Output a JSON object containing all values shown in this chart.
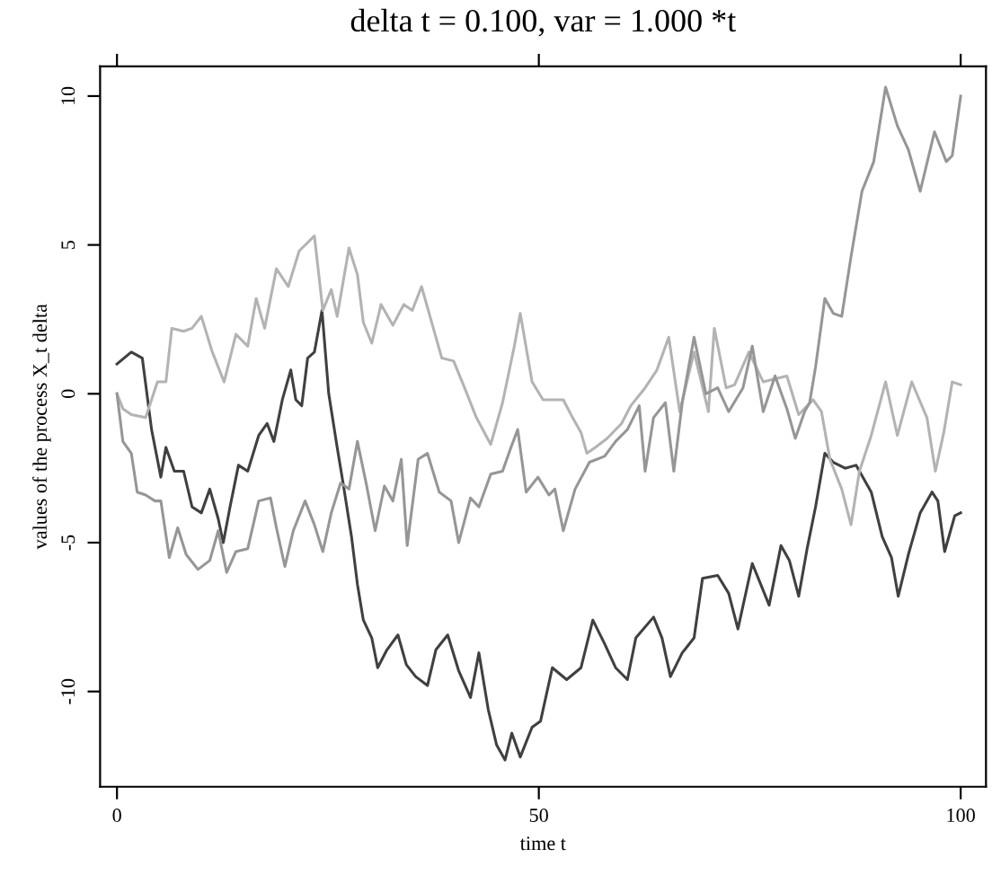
{
  "chart_data": {
    "type": "line",
    "title": "delta t = 0.100, var = 1.000 *t",
    "xlabel": "time t",
    "ylabel": "values of the process X_t delta",
    "xlim": [
      -2,
      103
    ],
    "ylim": [
      -13.2,
      11
    ],
    "xticks": [
      0,
      50,
      100
    ],
    "yticks": [
      -10,
      -5,
      0,
      5,
      10
    ],
    "grid": false,
    "legend": false,
    "marker": "none",
    "line_style": "solid",
    "series": [
      {
        "color": "#404040",
        "x": [
          0,
          1.7,
          3,
          4.1,
          5.2,
          5.8,
          6.8,
          7.9,
          8.9,
          10,
          11,
          12,
          12.6,
          13.4,
          14.4,
          15.5,
          16.8,
          17.8,
          18.6,
          19.6,
          20.6,
          21.2,
          21.9,
          22.6,
          23.4,
          24.3,
          25.1,
          26.1,
          26.8,
          27.8,
          28.5,
          29.2,
          30.2,
          30.9,
          32,
          33.3,
          34.3,
          35.4,
          36.8,
          37.8,
          39.2,
          40.5,
          41.9,
          42.9,
          44,
          45,
          46,
          46.8,
          47.8,
          49.2,
          50.2,
          51.6,
          53.3,
          55,
          56.4,
          57.8,
          59.1,
          60.5,
          61.5,
          63.6,
          64.6,
          65.6,
          67,
          68.4,
          69.4,
          71.2,
          72.5,
          73.6,
          75.3,
          76.3,
          77.3,
          78.7,
          79.7,
          80.8,
          81.8,
          82.8,
          83.9,
          84.9,
          86.3,
          87.6,
          89.4,
          90.7,
          91.8,
          92.6,
          93.8,
          95.2,
          96.6,
          97.3,
          98.1,
          99.3,
          100
        ],
        "values": [
          1.0,
          1.4,
          1.2,
          -1.2,
          -2.8,
          -1.8,
          -2.6,
          -2.6,
          -3.8,
          -4,
          -3.2,
          -4.2,
          -5,
          -3.8,
          -2.4,
          -2.6,
          -1.4,
          -1.0,
          -1.6,
          -0.2,
          0.8,
          -0.2,
          -0.4,
          1.2,
          1.4,
          2.8,
          0,
          -1.8,
          -3,
          -4.8,
          -6.4,
          -7.6,
          -8.2,
          -9.2,
          -8.6,
          -8.1,
          -9.1,
          -9.5,
          -9.8,
          -8.6,
          -8.1,
          -9.3,
          -10.2,
          -8.7,
          -10.6,
          -11.8,
          -12.3,
          -11.4,
          -12.2,
          -11.2,
          -11,
          -9.2,
          -9.6,
          -9.2,
          -7.6,
          -8.4,
          -9.2,
          -9.6,
          -8.2,
          -7.5,
          -8.2,
          -9.5,
          -8.7,
          -8.2,
          -6.2,
          -6.1,
          -6.7,
          -7.9,
          -5.7,
          -6.4,
          -7.1,
          -5.1,
          -5.6,
          -6.8,
          -5.2,
          -3.8,
          -2,
          -2.3,
          -2.5,
          -2.4,
          -3.3,
          -4.8,
          -5.5,
          -6.8,
          -5.4,
          -4,
          -3.3,
          -3.6,
          -5.3,
          -4.1,
          -4.0
        ]
      },
      {
        "color": "#b3b3b3",
        "x": [
          0,
          0.7,
          1.7,
          3.4,
          4.8,
          5.8,
          6.5,
          7.9,
          8.9,
          10,
          11.3,
          12.7,
          14.1,
          15.5,
          16.5,
          17.5,
          18.9,
          20.3,
          21.6,
          23.4,
          24.4,
          25.4,
          26.1,
          27.5,
          28.5,
          29.2,
          30.2,
          31.3,
          32.7,
          34,
          35,
          36.1,
          37.1,
          38.5,
          39.9,
          41.2,
          42.6,
          44.3,
          45.7,
          47.1,
          47.8,
          49.2,
          50.5,
          52.9,
          54,
          55,
          55.7,
          56.7,
          58.1,
          59.8,
          60.9,
          62.6,
          64,
          65.4,
          66.7,
          68.4,
          70.1,
          70.8,
          72.2,
          73.2,
          74.9,
          76.6,
          78,
          79.4,
          80.8,
          82.5,
          83.5,
          84.5,
          85.9,
          87,
          88,
          89.4,
          91.1,
          92.5,
          94.2,
          96,
          97,
          98,
          99,
          100
        ],
        "values": [
          0,
          -0.5,
          -0.7,
          -0.8,
          0.4,
          0.4,
          2.2,
          2.1,
          2.2,
          2.6,
          1.4,
          0.4,
          2,
          1.6,
          3.2,
          2.2,
          4.2,
          3.6,
          4.8,
          5.3,
          2.8,
          3.5,
          2.6,
          4.9,
          4,
          2.4,
          1.7,
          3,
          2.3,
          3,
          2.8,
          3.6,
          2.6,
          1.2,
          1.1,
          0.2,
          -0.8,
          -1.7,
          -0.3,
          1.6,
          2.7,
          0.4,
          -0.2,
          -0.2,
          -0.8,
          -1.3,
          -2,
          -1.8,
          -1.5,
          -1,
          -0.4,
          0.2,
          0.8,
          1.9,
          -0.6,
          1.4,
          -0.6,
          2.2,
          0.2,
          0.3,
          1.4,
          0.4,
          0.5,
          0.6,
          -0.7,
          -0.2,
          -0.6,
          -2.2,
          -3.2,
          -4.4,
          -2.6,
          -1.4,
          0.4,
          -1.4,
          0.4,
          -0.8,
          -2.6,
          -1.3,
          0.4,
          0.3
        ]
      },
      {
        "color": "#969696",
        "x": [
          0,
          0.7,
          1.7,
          2.4,
          3.4,
          4.5,
          5.2,
          6.2,
          7.2,
          8.2,
          9.6,
          11,
          12,
          13,
          14.1,
          15.5,
          16.8,
          18.2,
          18.9,
          19.9,
          20.9,
          22.3,
          23.4,
          24.4,
          25.4,
          26.5,
          27.5,
          28.5,
          29.6,
          30.6,
          31.7,
          32.7,
          33.7,
          34.4,
          35.7,
          36.8,
          38.2,
          39.6,
          40.5,
          41.9,
          42.9,
          44.3,
          45.7,
          46.7,
          47.5,
          48.5,
          49.9,
          51.2,
          51.9,
          52.9,
          54.3,
          56,
          57.8,
          59.1,
          60.5,
          61.9,
          62.6,
          63.6,
          65,
          66,
          67,
          68.4,
          69.8,
          71.2,
          72.5,
          74.2,
          75.3,
          76.6,
          78,
          79.4,
          80.4,
          81.5,
          82.1,
          82.8,
          83.9,
          84.9,
          85.9,
          87,
          88.3,
          89.7,
          91.1,
          92.5,
          93.8,
          95.2,
          96.9,
          98.3,
          99,
          100
        ],
        "values": [
          0,
          -1.6,
          -2,
          -3.3,
          -3.4,
          -3.6,
          -3.6,
          -5.5,
          -4.5,
          -5.4,
          -5.9,
          -5.6,
          -4.6,
          -6,
          -5.3,
          -5.2,
          -3.6,
          -3.5,
          -4.5,
          -5.8,
          -4.6,
          -3.6,
          -4.4,
          -5.3,
          -4,
          -3,
          -3.2,
          -1.6,
          -3.1,
          -4.6,
          -3.1,
          -3.6,
          -2.2,
          -5.1,
          -2.2,
          -2,
          -3.3,
          -3.6,
          -5,
          -3.5,
          -3.8,
          -2.7,
          -2.6,
          -1.8,
          -1.2,
          -3.3,
          -2.8,
          -3.4,
          -3.2,
          -4.6,
          -3.2,
          -2.3,
          -2.1,
          -1.6,
          -1.2,
          -0.4,
          -2.6,
          -0.8,
          -0.3,
          -2.6,
          -0.3,
          1.9,
          0,
          0.2,
          -0.6,
          0.2,
          1.6,
          -0.6,
          0.6,
          -0.5,
          -1.5,
          -0.6,
          -0.3,
          0.9,
          3.2,
          2.7,
          2.6,
          4.6,
          6.8,
          7.8,
          10.3,
          9,
          8.2,
          6.8,
          8.8,
          7.8,
          8,
          10
        ]
      }
    ]
  }
}
